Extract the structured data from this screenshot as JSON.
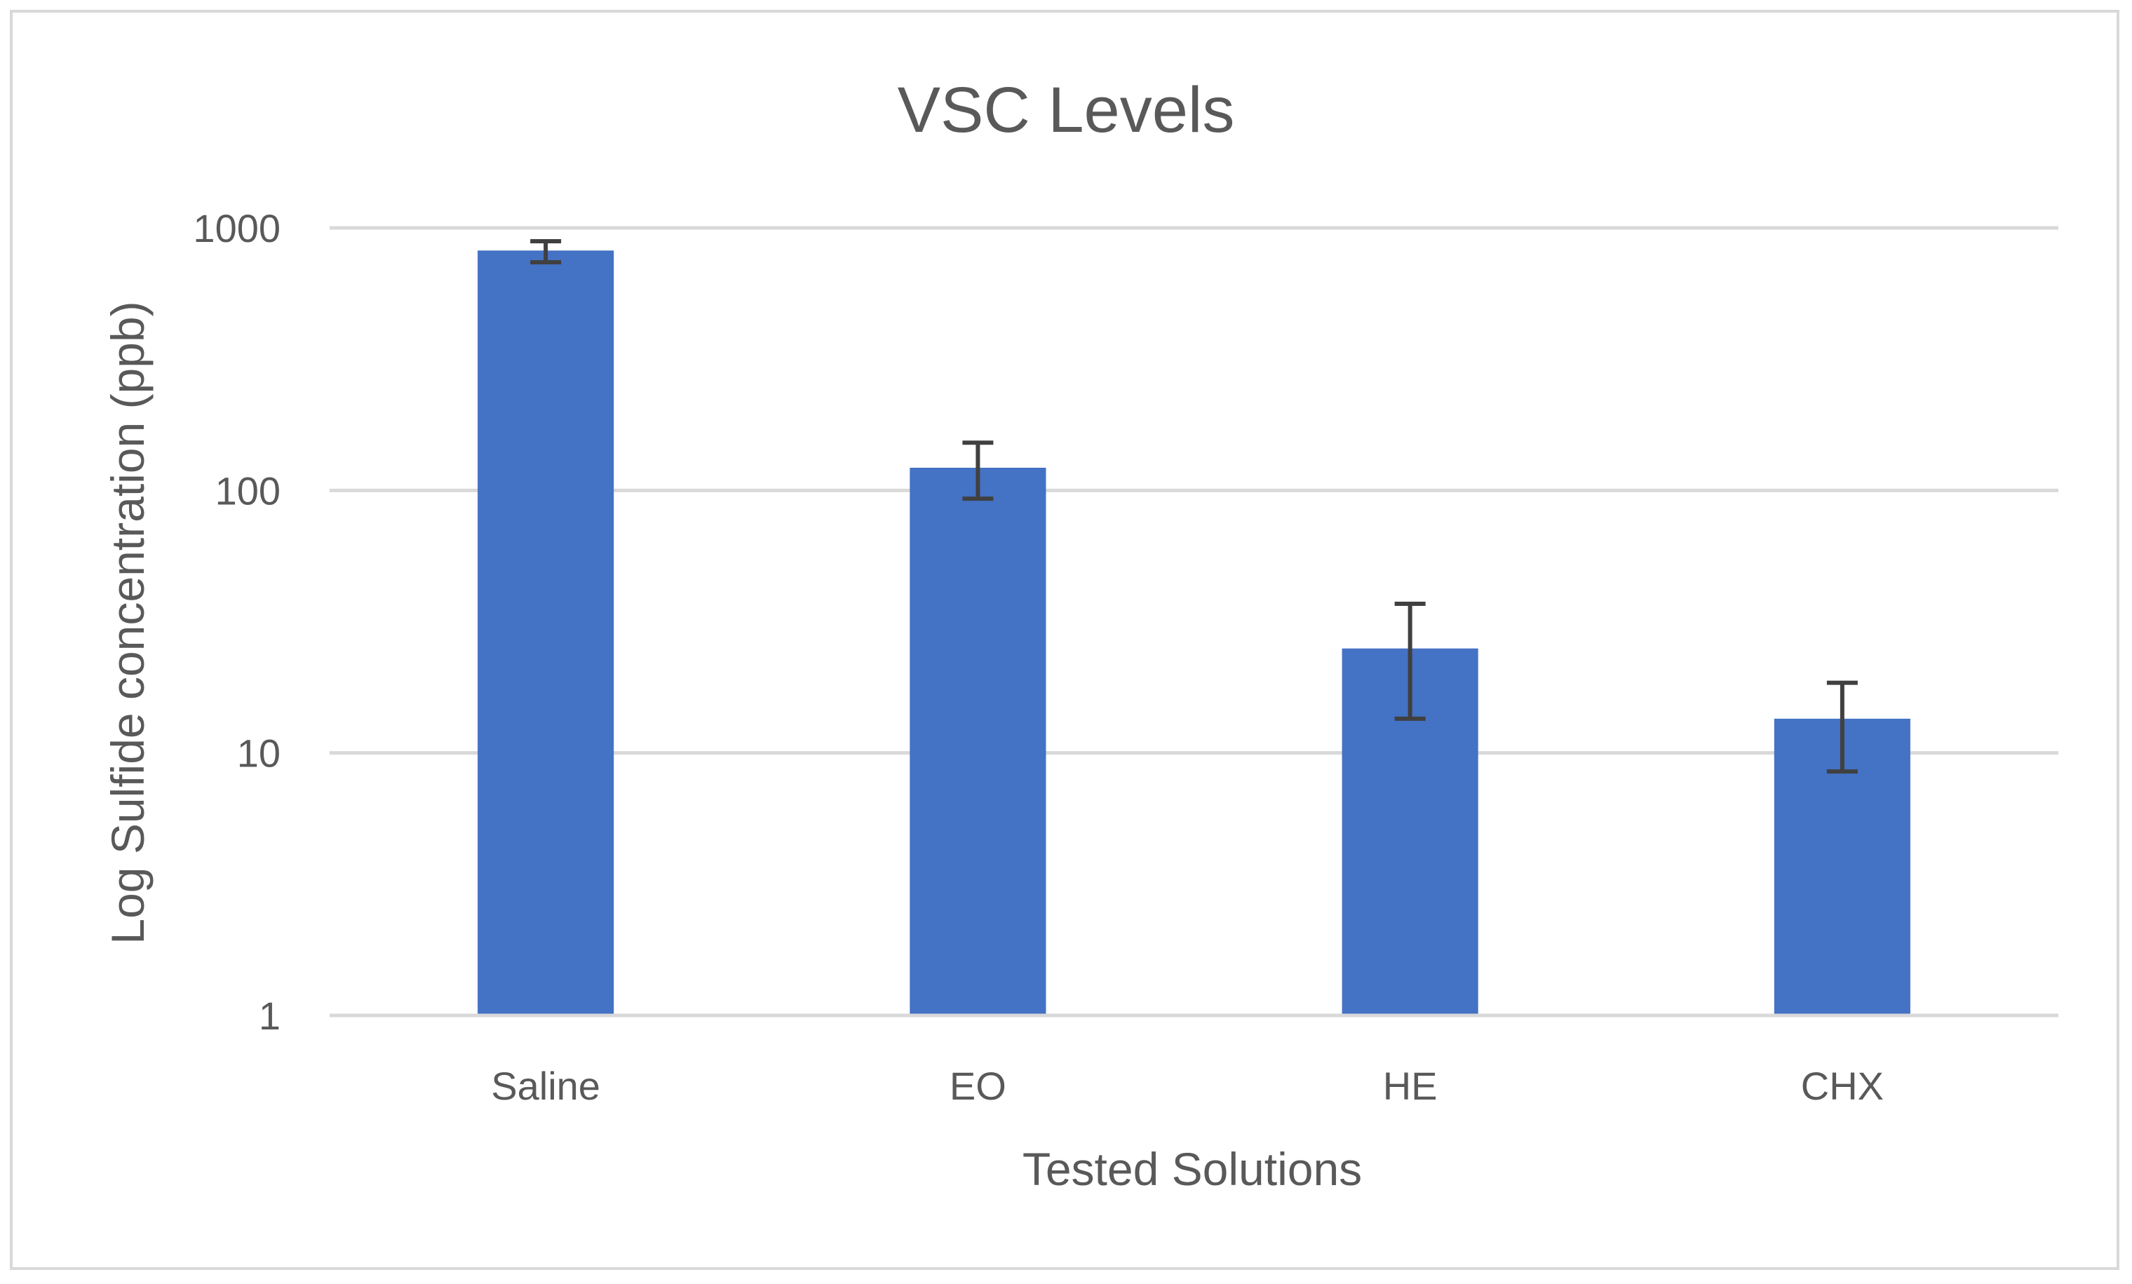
{
  "chart_data": {
    "type": "bar",
    "title": "VSC Levels",
    "xlabel": "Tested Solutions",
    "ylabel": "Log Sulfide concentration (ppb)",
    "y_scale": "log",
    "ylim": [
      1,
      1000
    ],
    "y_ticks": [
      {
        "value": 1,
        "label": "1"
      },
      {
        "value": 10,
        "label": "10"
      },
      {
        "value": 100,
        "label": "100"
      },
      {
        "value": 1000,
        "label": "1000"
      }
    ],
    "categories": [
      "Saline",
      "EO",
      "HE",
      "CHX"
    ],
    "values": [
      820,
      122,
      25,
      13.5
    ],
    "error_low": [
      740,
      93,
      13.5,
      8.5
    ],
    "error_high": [
      890,
      152,
      37,
      18.5
    ],
    "grid": true,
    "legend": "none",
    "colors": {
      "bar": "#4472c4",
      "error_bar": "#404040",
      "grid": "#d9d9d9",
      "text": "#595959",
      "frame": "#d9d9d9"
    }
  }
}
